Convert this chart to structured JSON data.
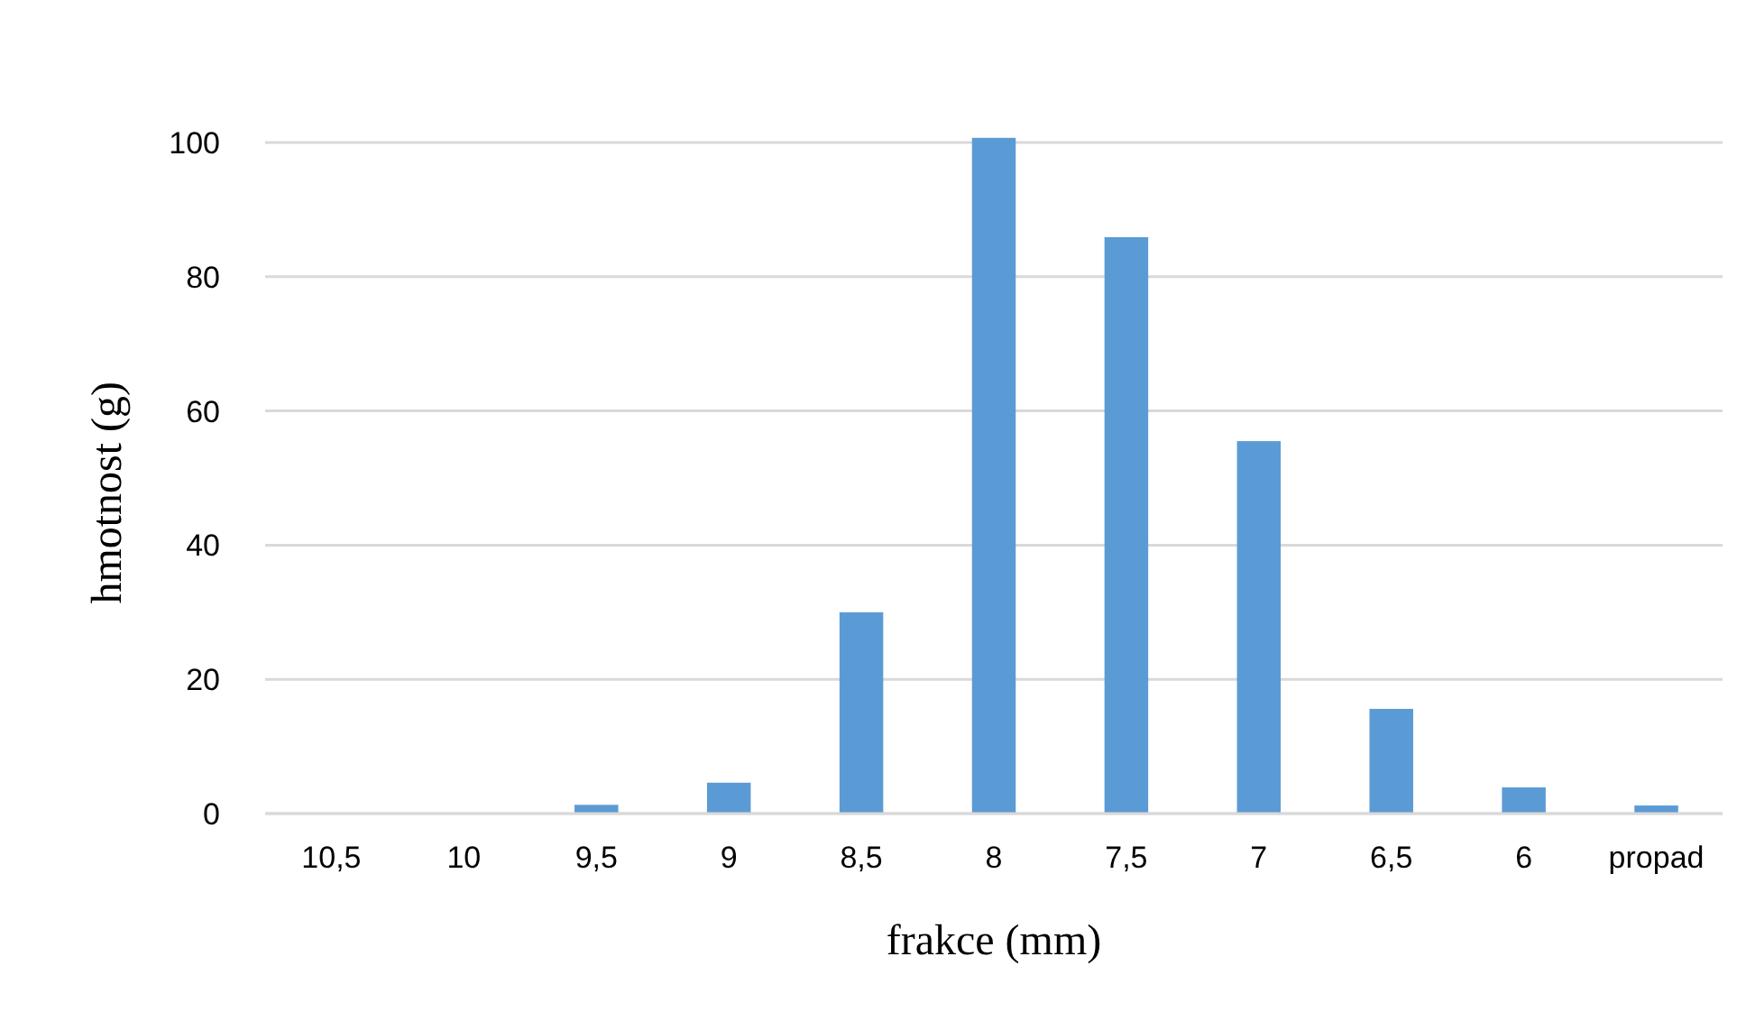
{
  "chart_data": {
    "type": "bar",
    "xlabel": "frakce (mm)",
    "ylabel": "hmotnost (g)",
    "categories": [
      "10,5",
      "10",
      "9,5",
      "9",
      "8,5",
      "8",
      "7,5",
      "7",
      "6,5",
      "6",
      "propad"
    ],
    "values": [
      0,
      0,
      1.3,
      4.6,
      30,
      100.7,
      85.9,
      55.5,
      15.6,
      3.9,
      1.2
    ],
    "color": "#5b9bd5",
    "ylim": [
      0,
      101
    ],
    "yticks": [
      0,
      20,
      40,
      60,
      80,
      100
    ],
    "grid": "y"
  }
}
